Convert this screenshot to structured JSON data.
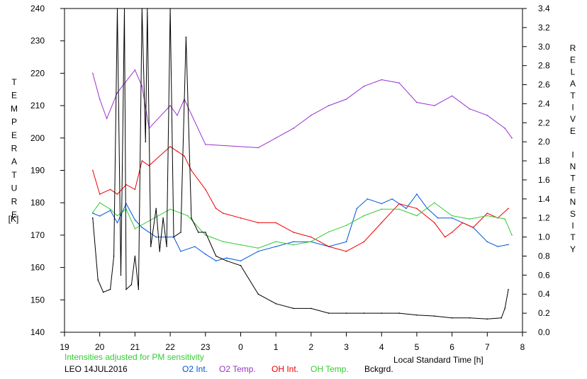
{
  "chart_data": {
    "type": "line",
    "left_axis_title": "TEMPERATURE",
    "left_axis_unit": "[K]",
    "right_axis_title": "RELATIVE INTENSITY",
    "xlabel": "Local Standard Time [h]",
    "note": "Intensities adjusted for PM sensitivity",
    "footer_id": "LEO 14JUL2016",
    "x_ticks": [
      "19",
      "20",
      "21",
      "22",
      "23",
      "0",
      "1",
      "2",
      "3",
      "4",
      "5",
      "6",
      "7",
      "8"
    ],
    "x_range": [
      19,
      8
    ],
    "y_left_ticks": [
      "140",
      "150",
      "160",
      "170",
      "180",
      "190",
      "200",
      "210",
      "220",
      "230",
      "240"
    ],
    "y_left_range": [
      140,
      240
    ],
    "y_right_ticks": [
      "0.0",
      "0.2",
      "0.4",
      "0.6",
      "0.8",
      "1.0",
      "1.2",
      "1.4",
      "1.6",
      "1.8",
      "2.0",
      "2.2",
      "2.4",
      "2.6",
      "2.8",
      "3.0",
      "3.2",
      "3.4"
    ],
    "y_right_range": [
      0.0,
      3.4
    ],
    "grid": false,
    "legend_position": "bottom",
    "series": [
      {
        "name": "O2 Int.",
        "axis": "right",
        "color": "#0055dd",
        "x": [
          "19.8",
          "20.0",
          "20.3",
          "20.5",
          "20.75",
          "21.0",
          "21.2",
          "21.6",
          "22.1",
          "22.3",
          "22.7",
          "23.0",
          "23.3",
          "23.6",
          "24.0",
          "24.5",
          "25.0",
          "25.5",
          "26.0",
          "26.5",
          "27.0",
          "27.3",
          "27.6",
          "28.0",
          "28.3",
          "28.7",
          "29.0",
          "29.3",
          "29.6",
          "30.0",
          "30.3",
          "30.6",
          "31.0",
          "31.3",
          "31.6"
        ],
        "y": [
          1.25,
          1.22,
          1.28,
          1.15,
          1.35,
          1.18,
          1.1,
          1.0,
          1.0,
          0.85,
          0.9,
          0.82,
          0.75,
          0.78,
          0.75,
          0.85,
          0.9,
          0.95,
          0.95,
          0.9,
          0.95,
          1.3,
          1.4,
          1.35,
          1.4,
          1.3,
          1.45,
          1.3,
          1.2,
          1.2,
          1.15,
          1.1,
          0.95,
          0.9,
          0.92
        ]
      },
      {
        "name": "O2 Temp.",
        "axis": "left",
        "color": "#9933cc",
        "x": [
          "19.8",
          "20.0",
          "20.2",
          "20.5",
          "21.0",
          "21.2",
          "21.4",
          "22.0",
          "22.2",
          "22.4",
          "23.0",
          "24.5",
          "25.0",
          "25.5",
          "26.0",
          "26.5",
          "27.0",
          "27.5",
          "28.0",
          "28.5",
          "29.0",
          "29.5",
          "30.0",
          "30.5",
          "31.0",
          "31.5",
          "31.7"
        ],
        "y": [
          220,
          212,
          206,
          214,
          221,
          216,
          203,
          210,
          207,
          212,
          198,
          197,
          200,
          203,
          207,
          210,
          212,
          216,
          218,
          217,
          211,
          210,
          213,
          209,
          207,
          203,
          200
        ]
      },
      {
        "name": "OH Int.",
        "axis": "right",
        "color": "#ee0000",
        "x": [
          "19.8",
          "20.0",
          "20.3",
          "20.5",
          "20.75",
          "21.0",
          "21.2",
          "21.4",
          "22.0",
          "22.2",
          "22.4",
          "22.6",
          "23.0",
          "23.3",
          "23.5",
          "24.0",
          "24.5",
          "25.0",
          "25.5",
          "26.0",
          "26.5",
          "27.0",
          "27.5",
          "28.0",
          "28.5",
          "29.0",
          "29.5",
          "29.8",
          "30.0",
          "30.3",
          "30.6",
          "31.0",
          "31.3",
          "31.6"
        ],
        "y": [
          1.7,
          1.45,
          1.5,
          1.45,
          1.55,
          1.5,
          1.8,
          1.75,
          1.95,
          1.9,
          1.85,
          1.7,
          1.5,
          1.3,
          1.25,
          1.2,
          1.15,
          1.15,
          1.05,
          1.0,
          0.9,
          0.85,
          0.95,
          1.15,
          1.35,
          1.3,
          1.15,
          1.0,
          1.05,
          1.15,
          1.1,
          1.25,
          1.2,
          1.3
        ]
      },
      {
        "name": "OH Temp.",
        "axis": "left",
        "color": "#33cc33",
        "x": [
          "19.8",
          "20.0",
          "20.3",
          "20.5",
          "20.75",
          "21.0",
          "22.0",
          "22.5",
          "23.0",
          "23.5",
          "24.0",
          "24.5",
          "25.0",
          "25.5",
          "26.0",
          "26.5",
          "27.0",
          "27.5",
          "28.0",
          "28.5",
          "29.0",
          "29.5",
          "30.0",
          "30.5",
          "31.0",
          "31.5",
          "31.7"
        ],
        "y": [
          177,
          180,
          178,
          176,
          178,
          172,
          178,
          176,
          170,
          168,
          167,
          166,
          168,
          167,
          168,
          171,
          173,
          176,
          178,
          178,
          176,
          180,
          176,
          175,
          176,
          175,
          170
        ]
      },
      {
        "name": "Bckgrd.",
        "axis": "right",
        "color": "#000000",
        "x": [
          "19.8",
          "19.95",
          "20.1",
          "20.3",
          "20.4",
          "20.5",
          "20.6",
          "20.7",
          "20.75",
          "20.9",
          "21.0",
          "21.1",
          "21.2",
          "21.3",
          "21.35",
          "21.45",
          "21.6",
          "21.7",
          "21.8",
          "21.9",
          "22.0",
          "22.1",
          "22.3",
          "22.45",
          "22.6",
          "22.8",
          "23.0",
          "23.3",
          "23.6",
          "24.0",
          "24.5",
          "25.0",
          "25.5",
          "26.0",
          "26.5",
          "27.0",
          "27.5",
          "28.0",
          "28.5",
          "29.0",
          "29.5",
          "30.0",
          "30.5",
          "31.0",
          "31.4",
          "31.5",
          "31.6"
        ],
        "y": [
          1.2,
          0.55,
          0.42,
          0.45,
          0.8,
          3.4,
          0.6,
          3.4,
          0.45,
          0.5,
          0.8,
          0.45,
          3.4,
          2.0,
          3.4,
          0.9,
          1.3,
          0.85,
          1.2,
          0.9,
          3.4,
          1.0,
          1.05,
          3.1,
          1.2,
          1.05,
          1.05,
          0.8,
          0.75,
          0.7,
          0.4,
          0.3,
          0.25,
          0.25,
          0.2,
          0.2,
          0.2,
          0.2,
          0.2,
          0.18,
          0.17,
          0.15,
          0.15,
          0.14,
          0.15,
          0.25,
          0.45
        ]
      }
    ]
  }
}
